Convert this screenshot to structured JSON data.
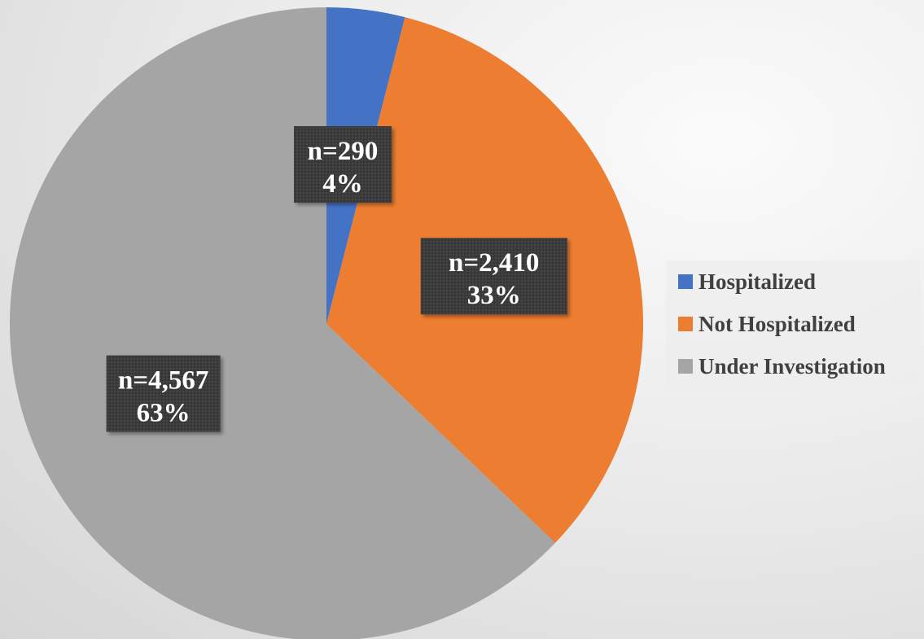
{
  "chart_data": {
    "type": "pie",
    "title": "",
    "categories": [
      "Hospitalized",
      "Not Hospitalized",
      "Under Investigation"
    ],
    "values": [
      290,
      2410,
      4567
    ],
    "percent_labels": [
      "4%",
      "33%",
      "63%"
    ],
    "count_labels": [
      "n=290",
      "n=2,410",
      "n=4,567"
    ],
    "colors": [
      "#4472c4",
      "#ed7d31",
      "#a5a5a5"
    ],
    "start_angle_deg": 0,
    "direction": "clockwise",
    "legend": {
      "position": "right",
      "entries": [
        "Hospitalized",
        "Not Hospitalized",
        "Under Investigation"
      ]
    },
    "data_label_style": {
      "background": "#3a3a3a",
      "text_color": "#ffffff"
    }
  }
}
